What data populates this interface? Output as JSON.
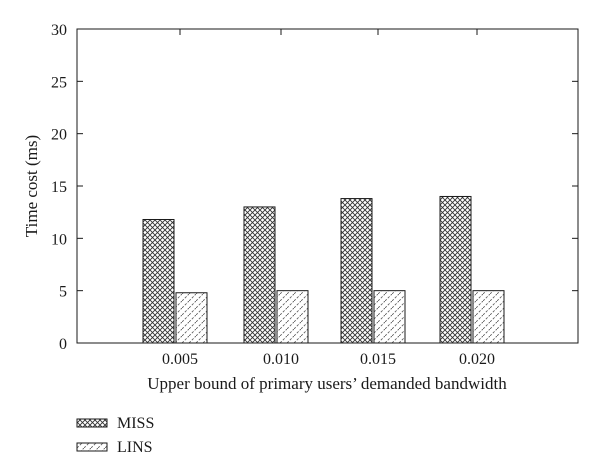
{
  "chart_data": {
    "type": "bar",
    "title": "",
    "xlabel": "Upper bound of primary users’ demanded bandwidth",
    "ylabel": "Time cost (ms)",
    "categories": [
      "0.005",
      "0.010",
      "0.015",
      "0.020"
    ],
    "ylim": [
      0,
      30
    ],
    "yticks": [
      0,
      5,
      10,
      15,
      20,
      25,
      30
    ],
    "grid": false,
    "legend_position": "below-left",
    "series": [
      {
        "name": "MISS",
        "pattern": "crosshatch",
        "values": [
          11.8,
          13.0,
          13.8,
          14.0
        ]
      },
      {
        "name": "LINS",
        "pattern": "diagonal-dashed",
        "values": [
          4.8,
          5.0,
          5.0,
          5.0
        ]
      }
    ]
  }
}
